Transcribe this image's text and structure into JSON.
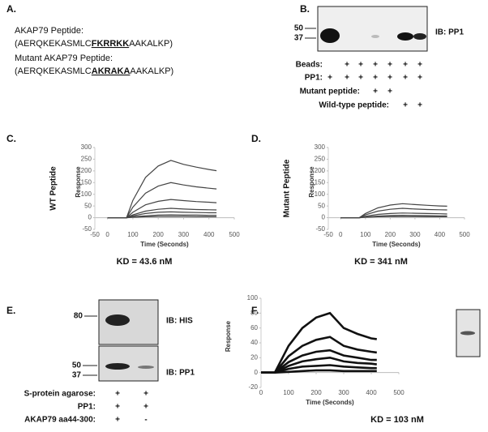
{
  "panel_a": {
    "label": "A.",
    "wt_title": "AKAP79 Peptide:",
    "wt_seq": [
      "(AERQKEKASMLC",
      "FKRRKK",
      "AAKALKP)"
    ],
    "mut_title": "Mutant AKAP79 Peptide:",
    "mut_seq": [
      "(AERQKEKASMLC",
      "AKRAKA",
      "AAKALKP)"
    ]
  },
  "panel_b": {
    "label": "B.",
    "markers": [
      "50",
      "37"
    ],
    "blot_label": "IB: PP1",
    "rows": [
      {
        "label": "Beads:",
        "cells": [
          null,
          "+",
          "+",
          "+",
          "+",
          "+",
          "+"
        ]
      },
      {
        "label": "PP1:",
        "cells": [
          "+",
          "+",
          "+",
          "+",
          "+",
          "+",
          "+"
        ]
      },
      {
        "label": "Mutant peptide:",
        "cells": [
          null,
          null,
          null,
          "+",
          "+",
          null,
          null
        ]
      },
      {
        "label": "Wild-type peptide:",
        "cells": [
          null,
          null,
          null,
          null,
          null,
          "+",
          "+"
        ]
      }
    ]
  },
  "panel_e": {
    "label": "E.",
    "top_marker": "80",
    "top_blot_label": "IB: HIS",
    "bottom_markers": [
      "50",
      "37"
    ],
    "bottom_blot_label": "IB: PP1",
    "rows": [
      {
        "label": "S-protein agarose:",
        "cells": [
          "+",
          "+"
        ]
      },
      {
        "label": "PP1:",
        "cells": [
          "+",
          "+"
        ]
      },
      {
        "label": "AKAP79 aa44-300:",
        "cells": [
          "+",
          "-"
        ]
      }
    ]
  },
  "chart_data": [
    {
      "type": "line",
      "panel_label": "C.",
      "side_label": "WT Peptide",
      "ylabel": "Response",
      "xlabel": "Time (Seconds)",
      "caption": "KD = 43.6 nM",
      "xlim": [
        -50,
        500
      ],
      "xticks": [
        -50,
        0,
        100,
        200,
        300,
        400,
        500
      ],
      "ylim": [
        -50,
        300
      ],
      "yticks": [
        -50,
        0,
        50,
        100,
        150,
        200,
        250,
        300
      ],
      "color": "#444",
      "x": [
        0,
        75,
        100,
        150,
        200,
        250,
        300,
        350,
        400,
        430
      ],
      "series": [
        {
          "values": [
            0,
            0,
            74,
            172,
            221,
            245,
            228,
            216,
            206,
            201
          ]
        },
        {
          "values": [
            0,
            0,
            45,
            105,
            135,
            150,
            140,
            132,
            126,
            123
          ]
        },
        {
          "values": [
            0,
            0,
            23,
            55,
            70,
            78,
            73,
            69,
            66,
            64
          ]
        },
        {
          "values": [
            0,
            0,
            12,
            28,
            36,
            40,
            37,
            35,
            34,
            33
          ]
        },
        {
          "values": [
            0,
            0,
            8,
            18,
            23,
            25,
            23,
            22,
            21,
            21
          ]
        },
        {
          "values": [
            0,
            0,
            4,
            8,
            11,
            12,
            11,
            11,
            10,
            10
          ]
        },
        {
          "values": [
            0,
            0,
            2,
            4,
            5,
            5,
            5,
            4,
            4,
            4
          ]
        }
      ]
    },
    {
      "type": "line",
      "panel_label": "D.",
      "side_label": "Mutant Peptide",
      "ylabel": "Response",
      "xlabel": "Time (Seconds)",
      "caption": "KD = 341 nM",
      "xlim": [
        -50,
        500
      ],
      "xticks": [
        -50,
        0,
        100,
        200,
        300,
        400,
        500
      ],
      "ylim": [
        -50,
        300
      ],
      "yticks": [
        -50,
        0,
        50,
        100,
        150,
        200,
        250,
        300
      ],
      "color": "#444",
      "x": [
        0,
        75,
        100,
        150,
        200,
        250,
        300,
        350,
        400,
        430
      ],
      "series": [
        {
          "values": [
            0,
            0,
            18,
            42,
            54,
            60,
            56,
            53,
            50,
            49
          ]
        },
        {
          "values": [
            0,
            0,
            12,
            28,
            36,
            40,
            37,
            35,
            34,
            33
          ]
        },
        {
          "values": [
            0,
            0,
            6,
            14,
            18,
            20,
            19,
            18,
            17,
            16
          ]
        },
        {
          "values": [
            0,
            0,
            3,
            7,
            9,
            10,
            9,
            9,
            8,
            8
          ]
        },
        {
          "values": [
            0,
            0,
            2,
            4,
            5,
            5,
            5,
            4,
            4,
            4
          ]
        }
      ]
    },
    {
      "type": "line",
      "panel_label": "F.",
      "ylabel": "Response",
      "xlabel": "Time (Seconds)",
      "caption": "KD = 103 nM",
      "xlim": [
        0,
        500
      ],
      "xticks": [
        0,
        100,
        200,
        300,
        400,
        500
      ],
      "ylim": [
        -20,
        100
      ],
      "yticks": [
        -20,
        0,
        20,
        40,
        60,
        80,
        100
      ],
      "color": "#111",
      "x": [
        0,
        50,
        100,
        150,
        200,
        250,
        300,
        350,
        400,
        420
      ],
      "series": [
        {
          "values": [
            0,
            0,
            36,
            60,
            74,
            80,
            60,
            52,
            46,
            45
          ]
        },
        {
          "values": [
            0,
            0,
            22,
            36,
            44,
            48,
            36,
            31,
            28,
            27
          ]
        },
        {
          "values": [
            0,
            0,
            14,
            23,
            28,
            30,
            23,
            20,
            17,
            17
          ]
        },
        {
          "values": [
            0,
            0,
            9,
            15,
            18,
            20,
            15,
            13,
            12,
            11
          ]
        },
        {
          "values": [
            0,
            0,
            5,
            8,
            9,
            10,
            8,
            7,
            6,
            6
          ]
        },
        {
          "values": [
            0,
            0,
            1,
            2,
            3,
            3,
            2,
            2,
            2,
            2
          ]
        }
      ]
    }
  ]
}
